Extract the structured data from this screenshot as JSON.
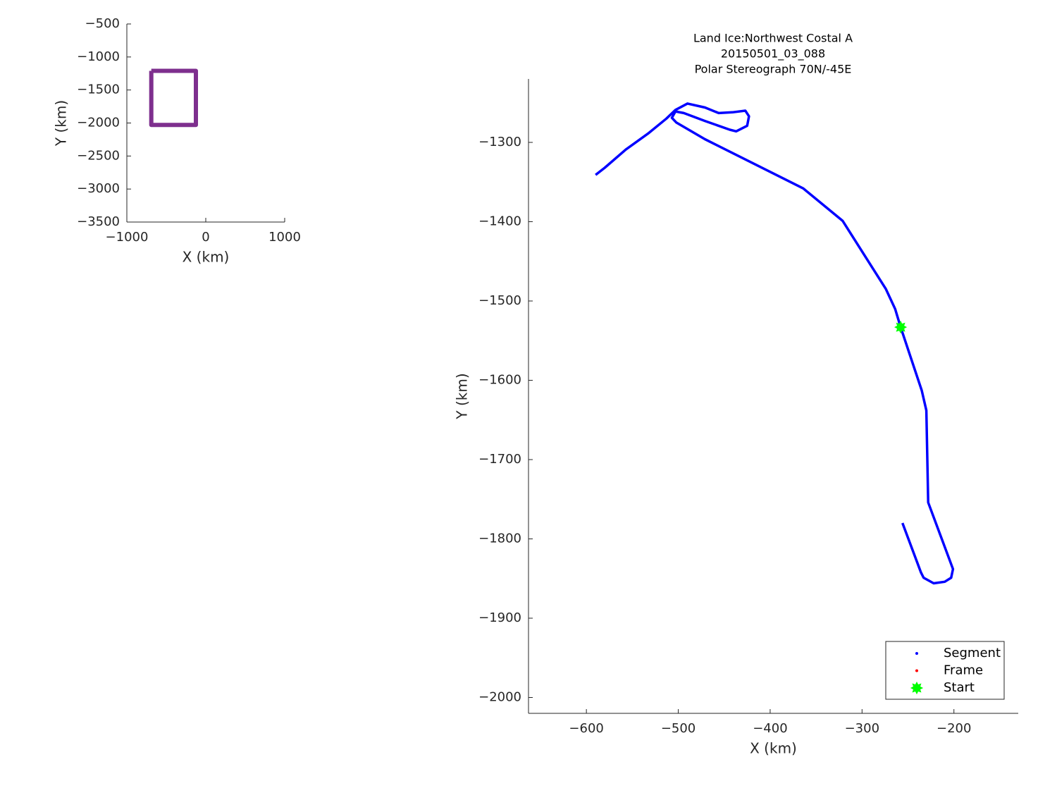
{
  "chart_data": [
    {
      "type": "line",
      "xlabel": "X (km)",
      "ylabel": "Y (km)",
      "xlim": [
        -1000,
        1000
      ],
      "xticks": [
        {
          "value": -1000,
          "label": "−1000"
        },
        0,
        1000
      ],
      "ylim": [
        -3500,
        -500
      ],
      "yticks": [
        {
          "value": -3500,
          "label": "−3500"
        },
        {
          "value": -3000,
          "label": "−3000"
        },
        {
          "value": -2500,
          "label": "−2500"
        },
        {
          "value": -2000,
          "label": "−2000"
        },
        {
          "value": -1500,
          "label": "−1500"
        },
        {
          "value": -1000,
          "label": "−1000"
        },
        {
          "value": -500,
          "label": "−500"
        }
      ],
      "series": [
        {
          "color": "#7e2f8e",
          "x": [
            -690,
            -125,
            -125,
            -690,
            -690
          ],
          "y": [
            -1210,
            -1210,
            -2030,
            -2030,
            -1210
          ]
        }
      ]
    },
    {
      "type": "line",
      "title": [
        "Land Ice:Northwest Costal A",
        "20150501_03_088",
        "Polar Stereograph 70N/-45E"
      ],
      "xlabel": "X (km)",
      "ylabel": "Y (km)",
      "xlim": [
        -663,
        -130
      ],
      "xticks": [
        {
          "value": -600,
          "label": "−600"
        },
        {
          "value": -500,
          "label": "−500"
        },
        {
          "value": -400,
          "label": "−400"
        },
        {
          "value": -300,
          "label": "−300"
        },
        {
          "value": -200,
          "label": "−200"
        }
      ],
      "ylim": [
        -2020,
        -1220
      ],
      "yticks": [
        {
          "value": -2000,
          "label": "−2000"
        },
        {
          "value": -1900,
          "label": "−1900"
        },
        {
          "value": -1800,
          "label": "−1800"
        },
        {
          "value": -1700,
          "label": "−1700"
        },
        {
          "value": -1600,
          "label": "−1600"
        },
        {
          "value": -1500,
          "label": "−1500"
        },
        {
          "value": -1400,
          "label": "−1400"
        },
        {
          "value": -1300,
          "label": "−1300"
        }
      ],
      "series": [
        {
          "color": "#0000ff",
          "x": [
            -590,
            -580,
            -557,
            -533,
            -513,
            -503,
            -490,
            -471,
            -456,
            -441,
            -427,
            -423,
            -425,
            -437,
            -444,
            -471,
            -494,
            -503,
            -507,
            -502,
            -471,
            -364,
            -321,
            -274,
            -264,
            -258,
            -235,
            -230,
            -228,
            -201,
            -203,
            -210,
            -222,
            -233,
            -236,
            -256
          ],
          "y": [
            -1341,
            -1332,
            -1309,
            -1289,
            -1270,
            -1259,
            -1251,
            -1256,
            -1263,
            -1262,
            -1260,
            -1267,
            -1279,
            -1286,
            -1284,
            -1273,
            -1263,
            -1261,
            -1269,
            -1275,
            -1296,
            -1358,
            -1399,
            -1485,
            -1510,
            -1533,
            -1613,
            -1638,
            -1754,
            -1838,
            -1849,
            -1854,
            -1856,
            -1849,
            -1842,
            -1780
          ]
        },
        {
          "type": "scatter",
          "color": "#00ff00",
          "x": [
            -258
          ],
          "y": [
            -1533
          ]
        }
      ],
      "legend": {
        "position": "lower right",
        "entries": [
          {
            "name": "Segment",
            "color": "#0000ff",
            "marker": "dot"
          },
          {
            "name": "Frame",
            "color": "#ff0000",
            "marker": "dot"
          },
          {
            "name": "Start",
            "color": "#00ff00",
            "marker": "star"
          }
        ]
      }
    }
  ]
}
